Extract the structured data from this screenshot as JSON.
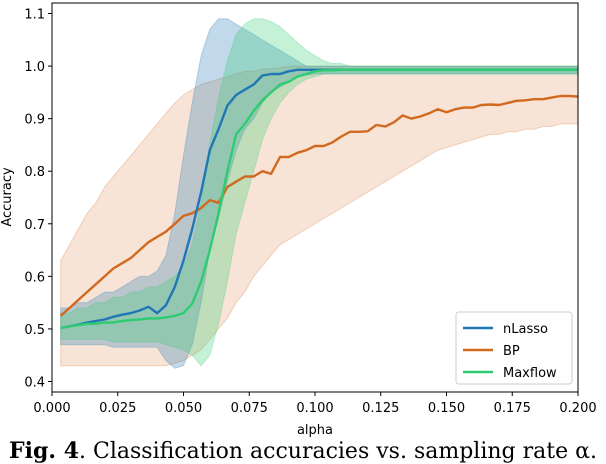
{
  "chart_data": {
    "type": "line",
    "title": "",
    "xlabel": "alpha",
    "ylabel": "Accuracy",
    "xlim": [
      0.0,
      0.2
    ],
    "ylim": [
      0.38,
      1.12
    ],
    "xticks": [
      "0.000",
      "0.025",
      "0.050",
      "0.075",
      "0.100",
      "0.125",
      "0.150",
      "0.175",
      "0.200"
    ],
    "yticks": [
      "0.4",
      "0.5",
      "0.6",
      "0.7",
      "0.8",
      "0.9",
      "1.0",
      "1.1"
    ],
    "grid": false,
    "legend_position": "bottom-right",
    "x": [
      0.0033,
      0.0067,
      0.01,
      0.0133,
      0.0167,
      0.02,
      0.0233,
      0.0267,
      0.03,
      0.0333,
      0.0367,
      0.04,
      0.0433,
      0.0467,
      0.05,
      0.0533,
      0.0567,
      0.06,
      0.0633,
      0.0667,
      0.07,
      0.0733,
      0.0767,
      0.08,
      0.0833,
      0.0867,
      0.09,
      0.0933,
      0.0967,
      0.1,
      0.1033,
      0.1067,
      0.11,
      0.1133,
      0.1167,
      0.12,
      0.1233,
      0.1267,
      0.13,
      0.1333,
      0.1367,
      0.14,
      0.1433,
      0.1467,
      0.15,
      0.1533,
      0.1567,
      0.16,
      0.1633,
      0.1667,
      0.17,
      0.1733,
      0.1767,
      0.18,
      0.1833,
      0.1867,
      0.19,
      0.1933,
      0.1967,
      0.2
    ],
    "series": [
      {
        "name": "nLasso",
        "color": "#1f77b4",
        "values": [
          0.502,
          0.505,
          0.508,
          0.512,
          0.515,
          0.518,
          0.523,
          0.527,
          0.53,
          0.535,
          0.542,
          0.53,
          0.545,
          0.58,
          0.63,
          0.69,
          0.76,
          0.84,
          0.88,
          0.925,
          0.945,
          0.955,
          0.965,
          0.982,
          0.985,
          0.985,
          0.99,
          0.993,
          0.993,
          0.993,
          0.993,
          0.993,
          0.993,
          0.993,
          0.993,
          0.993,
          0.993,
          0.993,
          0.993,
          0.993,
          0.993,
          0.993,
          0.993,
          0.993,
          0.993,
          0.993,
          0.993,
          0.993,
          0.993,
          0.993,
          0.993,
          0.993,
          0.993,
          0.993,
          0.993,
          0.993,
          0.993,
          0.993,
          0.993,
          0.993
        ],
        "lower": [
          0.47,
          0.47,
          0.47,
          0.47,
          0.47,
          0.47,
          0.465,
          0.465,
          0.465,
          0.465,
          0.465,
          0.465,
          0.44,
          0.425,
          0.43,
          0.47,
          0.55,
          0.65,
          0.71,
          0.78,
          0.84,
          0.88,
          0.9,
          0.93,
          0.95,
          0.96,
          0.97,
          0.98,
          0.983,
          0.985,
          0.985,
          0.985,
          0.985,
          0.985,
          0.985,
          0.985,
          0.985,
          0.985,
          0.985,
          0.985,
          0.985,
          0.985,
          0.985,
          0.985,
          0.985,
          0.985,
          0.985,
          0.985,
          0.985,
          0.985,
          0.985,
          0.985,
          0.985,
          0.985,
          0.985,
          0.985,
          0.985,
          0.985,
          0.985,
          0.985
        ],
        "upper": [
          0.54,
          0.54,
          0.55,
          0.55,
          0.56,
          0.57,
          0.57,
          0.58,
          0.59,
          0.6,
          0.6,
          0.61,
          0.64,
          0.72,
          0.83,
          0.93,
          1.02,
          1.07,
          1.09,
          1.09,
          1.08,
          1.07,
          1.06,
          1.05,
          1.04,
          1.03,
          1.02,
          1.01,
          1.0,
          1.0,
          1.0,
          1.0,
          1.0,
          1.0,
          1.0,
          1.0,
          1.0,
          1.0,
          1.0,
          1.0,
          1.0,
          1.0,
          1.0,
          1.0,
          1.0,
          1.0,
          1.0,
          1.0,
          1.0,
          1.0,
          1.0,
          1.0,
          1.0,
          1.0,
          1.0,
          1.0,
          1.0,
          1.0,
          1.0,
          1.0
        ]
      },
      {
        "name": "BP",
        "color": "#d2691e",
        "values": [
          0.525,
          0.54,
          0.555,
          0.57,
          0.585,
          0.6,
          0.615,
          0.625,
          0.635,
          0.65,
          0.665,
          0.675,
          0.685,
          0.7,
          0.715,
          0.72,
          0.73,
          0.745,
          0.74,
          0.77,
          0.78,
          0.79,
          0.79,
          0.8,
          0.795,
          0.827,
          0.827,
          0.835,
          0.84,
          0.848,
          0.848,
          0.855,
          0.866,
          0.875,
          0.875,
          0.876,
          0.888,
          0.885,
          0.893,
          0.906,
          0.9,
          0.904,
          0.91,
          0.918,
          0.912,
          0.918,
          0.921,
          0.921,
          0.926,
          0.927,
          0.926,
          0.93,
          0.934,
          0.935,
          0.937,
          0.937,
          0.94,
          0.943,
          0.943,
          0.942
        ],
        "lower": [
          0.43,
          0.43,
          0.43,
          0.43,
          0.43,
          0.43,
          0.43,
          0.43,
          0.43,
          0.43,
          0.43,
          0.43,
          0.43,
          0.435,
          0.44,
          0.45,
          0.46,
          0.48,
          0.5,
          0.52,
          0.55,
          0.57,
          0.6,
          0.62,
          0.64,
          0.66,
          0.67,
          0.68,
          0.69,
          0.7,
          0.71,
          0.72,
          0.73,
          0.74,
          0.75,
          0.76,
          0.77,
          0.78,
          0.79,
          0.8,
          0.81,
          0.82,
          0.83,
          0.84,
          0.845,
          0.85,
          0.855,
          0.86,
          0.865,
          0.87,
          0.87,
          0.875,
          0.875,
          0.88,
          0.88,
          0.885,
          0.885,
          0.89,
          0.89,
          0.89
        ],
        "upper": [
          0.63,
          0.66,
          0.69,
          0.72,
          0.74,
          0.77,
          0.79,
          0.81,
          0.83,
          0.85,
          0.87,
          0.89,
          0.91,
          0.93,
          0.945,
          0.955,
          0.965,
          0.97,
          0.975,
          0.98,
          0.985,
          0.99,
          0.99,
          0.995,
          0.995,
          0.997,
          1.0,
          1.0,
          1.0,
          1.0,
          1.0,
          1.0,
          1.0,
          1.0,
          1.0,
          1.0,
          1.0,
          1.0,
          1.0,
          1.0,
          1.0,
          1.0,
          1.0,
          1.0,
          1.0,
          1.0,
          1.0,
          1.0,
          1.0,
          1.0,
          1.0,
          1.0,
          1.0,
          1.0,
          1.0,
          1.0,
          1.0,
          1.0,
          1.0,
          1.0
        ]
      },
      {
        "name": "Maxflow",
        "color": "#2ecc71",
        "values": [
          0.502,
          0.505,
          0.507,
          0.51,
          0.51,
          0.512,
          0.512,
          0.515,
          0.517,
          0.518,
          0.52,
          0.52,
          0.522,
          0.525,
          0.53,
          0.548,
          0.59,
          0.65,
          0.72,
          0.8,
          0.87,
          0.89,
          0.915,
          0.935,
          0.95,
          0.965,
          0.97,
          0.98,
          0.985,
          0.99,
          0.992,
          0.992,
          0.993,
          0.993,
          0.993,
          0.993,
          0.993,
          0.993,
          0.993,
          0.993,
          0.993,
          0.993,
          0.993,
          0.993,
          0.993,
          0.993,
          0.993,
          0.993,
          0.993,
          0.993,
          0.993,
          0.993,
          0.993,
          0.993,
          0.993,
          0.993,
          0.993,
          0.993,
          0.993,
          0.993
        ],
        "lower": [
          0.48,
          0.48,
          0.48,
          0.48,
          0.48,
          0.48,
          0.475,
          0.475,
          0.475,
          0.475,
          0.475,
          0.475,
          0.47,
          0.465,
          0.46,
          0.45,
          0.43,
          0.45,
          0.51,
          0.59,
          0.68,
          0.74,
          0.8,
          0.86,
          0.9,
          0.93,
          0.95,
          0.965,
          0.975,
          0.98,
          0.985,
          0.985,
          0.985,
          0.985,
          0.985,
          0.985,
          0.985,
          0.985,
          0.985,
          0.985,
          0.985,
          0.985,
          0.985,
          0.985,
          0.985,
          0.985,
          0.985,
          0.985,
          0.985,
          0.985,
          0.985,
          0.985,
          0.985,
          0.985,
          0.985,
          0.985,
          0.985,
          0.985,
          0.985,
          0.985
        ],
        "upper": [
          0.53,
          0.53,
          0.54,
          0.54,
          0.55,
          0.55,
          0.56,
          0.56,
          0.57,
          0.57,
          0.58,
          0.58,
          0.59,
          0.6,
          0.62,
          0.66,
          0.74,
          0.85,
          0.94,
          1.01,
          1.06,
          1.08,
          1.09,
          1.09,
          1.085,
          1.075,
          1.06,
          1.045,
          1.03,
          1.02,
          1.01,
          1.005,
          1.005,
          1.0,
          1.0,
          1.0,
          1.0,
          1.0,
          1.0,
          1.0,
          1.0,
          1.0,
          1.0,
          1.0,
          1.0,
          1.0,
          1.0,
          1.0,
          1.0,
          1.0,
          1.0,
          1.0,
          1.0,
          1.0,
          1.0,
          1.0,
          1.0,
          1.0,
          1.0,
          1.0
        ]
      }
    ]
  },
  "caption": {
    "label": "Fig. 4",
    "text": ". Classification accuracies vs. sampling rate α."
  }
}
